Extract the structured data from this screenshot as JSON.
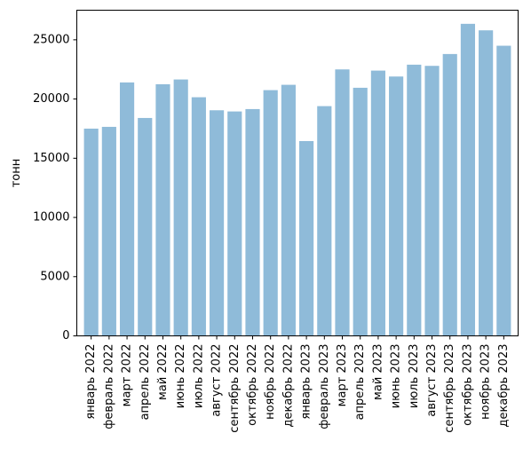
{
  "chart_data": {
    "type": "bar",
    "title": "",
    "xlabel": "",
    "ylabel": "тонн",
    "ylim": [
      0,
      27500
    ],
    "yticks": [
      0,
      5000,
      10000,
      15000,
      20000,
      25000
    ],
    "grid": false,
    "bar_color": "#8fbbd9",
    "categories": [
      "январь 2022",
      "февраль 2022",
      "март 2022",
      "апрель 2022",
      "май 2022",
      "июнь 2022",
      "июль 2022",
      "август 2022",
      "сентябрь 2022",
      "октябрь 2022",
      "ноябрь 2022",
      "декабрь 2022",
      "январь 2023",
      "февраль 2023",
      "март 2023",
      "апрель 2023",
      "май 2023",
      "июнь 2023",
      "июль 2023",
      "август 2023",
      "сентябрь 2023",
      "октябрь 2023",
      "ноябрь 2023",
      "декабрь 2023"
    ],
    "values": [
      17500,
      17650,
      21400,
      18400,
      21250,
      21650,
      20150,
      19050,
      18950,
      19150,
      20750,
      21200,
      16450,
      19400,
      22500,
      20950,
      22400,
      21900,
      22900,
      22800,
      23800,
      26350,
      25800,
      24500
    ]
  }
}
